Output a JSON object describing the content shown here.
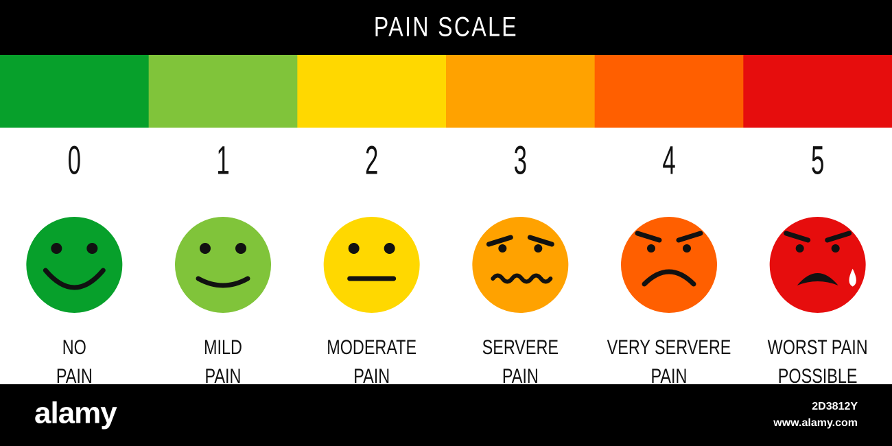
{
  "title": "PAIN SCALE",
  "levels": [
    {
      "number": 0,
      "label": [
        "NO",
        "PAIN"
      ]
    },
    {
      "number": 1,
      "label": [
        "MILD",
        "PAIN"
      ]
    },
    {
      "number": 2,
      "label": [
        "MODERATE",
        "PAIN"
      ]
    },
    {
      "number": 3,
      "label": [
        "SERVERE",
        "PAIN"
      ]
    },
    {
      "number": 4,
      "label": [
        "VERY SERVERE",
        "PAIN"
      ]
    },
    {
      "number": 5,
      "label": [
        "WORST PAIN",
        "POSSIBLE"
      ]
    }
  ],
  "watermark": {
    "logo": "alamy",
    "image_id": "2D3812Y",
    "url": "www.alamy.com"
  }
}
